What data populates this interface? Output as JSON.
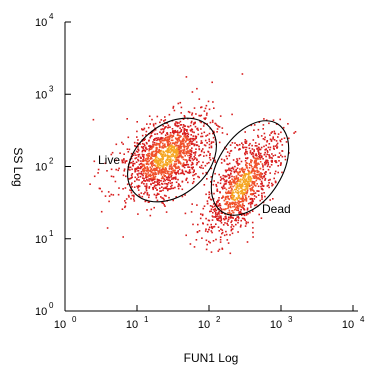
{
  "chart_data": {
    "type": "scatter",
    "title": "",
    "xlabel": "FUN1 Log",
    "ylabel": "SS Log",
    "x_scale": "log",
    "y_scale": "log",
    "xlim": [
      1,
      10000
    ],
    "ylim": [
      1,
      10000
    ],
    "x_ticks": [
      {
        "base": "10",
        "exp": "0"
      },
      {
        "base": "10",
        "exp": "1"
      },
      {
        "base": "10",
        "exp": "2"
      },
      {
        "base": "10",
        "exp": "3"
      },
      {
        "base": "10",
        "exp": "4"
      }
    ],
    "y_ticks": [
      {
        "base": "10",
        "exp": "0"
      },
      {
        "base": "10",
        "exp": "1"
      },
      {
        "base": "10",
        "exp": "2"
      },
      {
        "base": "10",
        "exp": "3"
      },
      {
        "base": "10",
        "exp": "4"
      }
    ],
    "grid": false,
    "gates": [
      {
        "name": "Live",
        "center": [
          22,
          130
        ],
        "description": "tilted ellipse"
      },
      {
        "name": "Dead",
        "center": [
          280,
          55
        ],
        "description": "tilted ellipse"
      }
    ],
    "populations": [
      {
        "name": "Live",
        "x_center": 25,
        "y_center": 140,
        "color": "#e8272a"
      },
      {
        "name": "Dead",
        "x_center": 280,
        "y_center": 55,
        "color": "#e8272a"
      }
    ],
    "colors": {
      "low_density": "#d81e1e",
      "mid_density": "#f0502a",
      "high_density": "#f5a623"
    }
  }
}
